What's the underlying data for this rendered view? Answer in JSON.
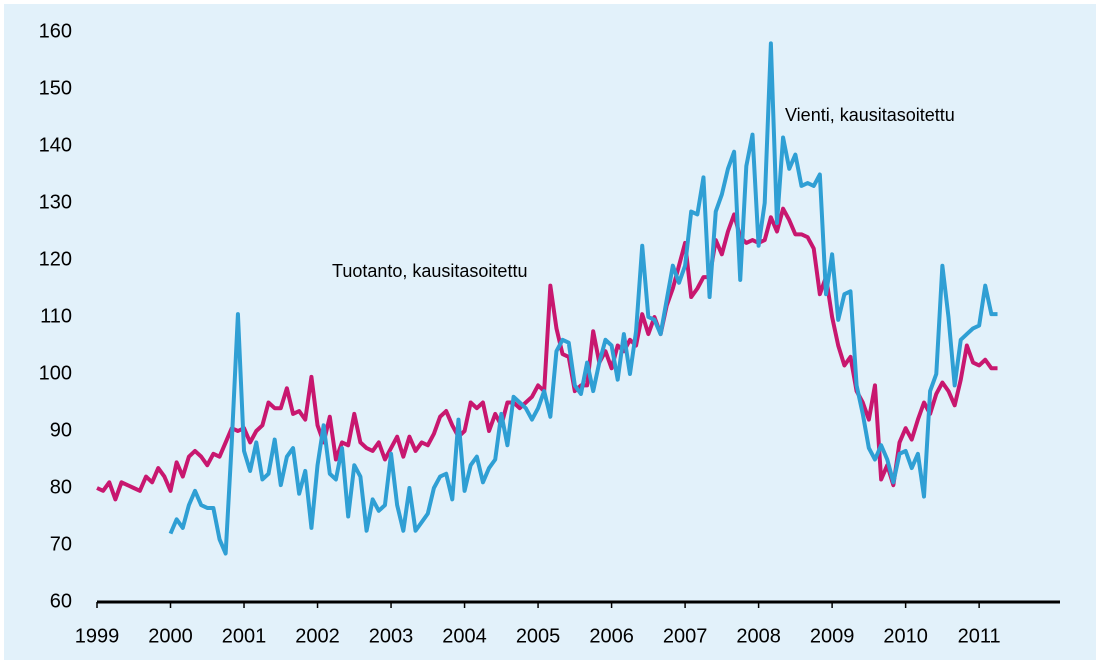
{
  "chart_data": {
    "type": "line",
    "x": [
      1999,
      1999.083,
      1999.167,
      1999.25,
      1999.333,
      1999.417,
      1999.5,
      1999.583,
      1999.667,
      1999.75,
      1999.833,
      1999.917,
      2000,
      2000.083,
      2000.167,
      2000.25,
      2000.333,
      2000.417,
      2000.5,
      2000.583,
      2000.667,
      2000.75,
      2000.833,
      2000.917,
      2001,
      2001.083,
      2001.167,
      2001.25,
      2001.333,
      2001.417,
      2001.5,
      2001.583,
      2001.667,
      2001.75,
      2001.833,
      2001.917,
      2002,
      2002.083,
      2002.167,
      2002.25,
      2002.333,
      2002.417,
      2002.5,
      2002.583,
      2002.667,
      2002.75,
      2002.833,
      2002.917,
      2003,
      2003.083,
      2003.167,
      2003.25,
      2003.333,
      2003.417,
      2003.5,
      2003.583,
      2003.667,
      2003.75,
      2003.833,
      2003.917,
      2004,
      2004.083,
      2004.167,
      2004.25,
      2004.333,
      2004.417,
      2004.5,
      2004.583,
      2004.667,
      2004.75,
      2004.833,
      2004.917,
      2005,
      2005.083,
      2005.167,
      2005.25,
      2005.333,
      2005.417,
      2005.5,
      2005.583,
      2005.667,
      2005.75,
      2005.833,
      2005.917,
      2006,
      2006.083,
      2006.167,
      2006.25,
      2006.333,
      2006.417,
      2006.5,
      2006.583,
      2006.667,
      2006.75,
      2006.833,
      2006.917,
      2007,
      2007.083,
      2007.167,
      2007.25,
      2007.333,
      2007.417,
      2007.5,
      2007.583,
      2007.667,
      2007.75,
      2007.833,
      2007.917,
      2008,
      2008.083,
      2008.167,
      2008.25,
      2008.333,
      2008.417,
      2008.5,
      2008.583,
      2008.667,
      2008.75,
      2008.833,
      2008.917,
      2009,
      2009.083,
      2009.167,
      2009.25,
      2009.333,
      2009.417,
      2009.5,
      2009.583,
      2009.667,
      2009.75,
      2009.833,
      2009.917,
      2010,
      2010.083,
      2010.167,
      2010.25,
      2010.333,
      2010.417,
      2010.5,
      2010.583,
      2010.667,
      2010.75,
      2010.833,
      2010.917,
      2011,
      2011.083,
      2011.167,
      2011.25
    ],
    "series": [
      {
        "name": "Tuotanto, kausitasoitettu",
        "color": "#c8176f",
        "values": [
          80,
          79.5,
          81,
          78,
          81,
          80.5,
          80,
          79.5,
          82,
          81,
          83.5,
          82,
          79.5,
          84.5,
          82,
          85.5,
          86.5,
          85.5,
          84,
          86,
          85.5,
          88,
          90.5,
          90,
          90.5,
          88,
          90,
          91,
          95,
          94,
          94,
          97.5,
          93,
          93.5,
          92,
          99.5,
          91,
          88,
          92.5,
          85,
          88,
          87.5,
          93,
          88,
          87,
          86.5,
          88,
          85,
          87,
          89,
          85.5,
          89,
          86.5,
          88,
          87.5,
          89.5,
          92.5,
          93.5,
          91,
          89,
          90,
          95,
          94,
          95,
          90,
          93,
          91,
          95,
          95,
          94,
          95,
          96,
          98,
          97,
          115.5,
          108,
          103.5,
          103,
          97,
          98,
          98,
          107.5,
          102,
          104,
          101,
          105,
          104,
          106,
          105,
          110.5,
          107,
          110,
          107,
          112,
          115,
          119,
          123,
          113.5,
          115,
          117,
          117,
          123.5,
          121,
          125,
          128,
          124,
          123,
          123.5,
          123,
          123.5,
          127.5,
          125,
          129,
          127,
          124.5,
          124.5,
          124,
          122,
          114,
          117,
          110,
          105,
          101.5,
          103,
          97,
          95,
          92,
          98,
          81.5,
          84,
          80.5,
          88,
          90.5,
          88.5,
          92,
          95,
          93,
          96.5,
          98.5,
          97,
          94.5,
          99,
          105,
          102,
          101.5,
          102.5,
          101,
          101
        ]
      },
      {
        "name": "Vienti, kausitasoitettu",
        "color": "#2f9fd4",
        "values": [
          null,
          null,
          null,
          null,
          null,
          null,
          null,
          null,
          null,
          null,
          null,
          null,
          72,
          74.5,
          73,
          77,
          79.5,
          77,
          76.5,
          76.5,
          71,
          68.5,
          88,
          110.5,
          86.5,
          83,
          88,
          81.5,
          82.5,
          88.5,
          80.5,
          85.5,
          87,
          79,
          83,
          73,
          84,
          91,
          82.5,
          81.5,
          87,
          75,
          84,
          82,
          72.5,
          78,
          76,
          77,
          86,
          77,
          72.5,
          80,
          72.5,
          74,
          75.5,
          80,
          82,
          82.5,
          78,
          92,
          79.5,
          84,
          85.5,
          81,
          83.5,
          85,
          93,
          87.5,
          96,
          95,
          94,
          92,
          94,
          97,
          92.5,
          104,
          106,
          105.5,
          98,
          96.5,
          102,
          97,
          102,
          106,
          105,
          99,
          107,
          100,
          107.5,
          122.5,
          110,
          109.5,
          107,
          113,
          119,
          116,
          119,
          128.5,
          128,
          134.5,
          113.5,
          128.5,
          131.5,
          136,
          139,
          116.5,
          136.5,
          142,
          122.5,
          130,
          158,
          126.5,
          141.5,
          136,
          138.5,
          133,
          133.5,
          133,
          135,
          114,
          121,
          109.5,
          114,
          114.5,
          98,
          93,
          87,
          85,
          87.5,
          85,
          81,
          86,
          86.5,
          83.5,
          86,
          78.5,
          97,
          100,
          119,
          110,
          98,
          106,
          107,
          108,
          108.5,
          115.5,
          110.5,
          110.5
        ]
      }
    ],
    "xlim": [
      1999,
      2012.1
    ],
    "xticks": [
      1999,
      2000,
      2001,
      2002,
      2003,
      2004,
      2005,
      2006,
      2007,
      2008,
      2009,
      2010,
      2011
    ],
    "ylim": [
      60,
      160
    ],
    "yticks": [
      60,
      70,
      80,
      90,
      100,
      110,
      120,
      130,
      140,
      150,
      160
    ],
    "grid": false
  }
}
